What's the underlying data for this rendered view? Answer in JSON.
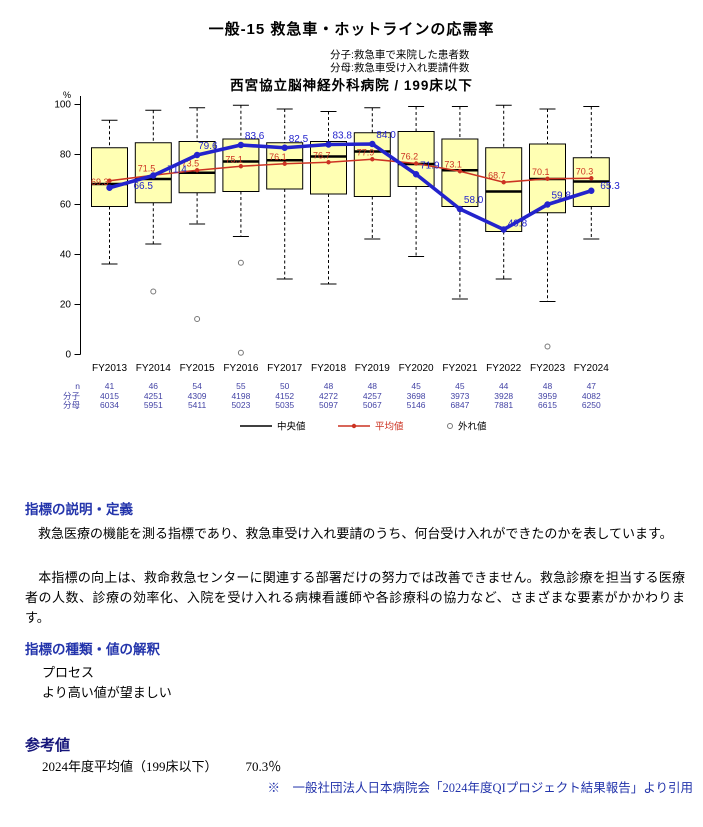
{
  "header": {
    "title": "一般-15 救急車・ホットラインの応需率",
    "numerator_note": "分子:救急車で来院した患者数",
    "denominator_note": "分母:救急車受け入れ要請件数",
    "chart_title": "西宮協立脳神経外科病院 / 199床以下"
  },
  "chart_data": {
    "type": "boxplot+line",
    "title": "西宮協立脳神経外科病院 / 199床以下",
    "unit": "%",
    "ylim": [
      0,
      100
    ],
    "yticks": [
      0,
      20,
      40,
      60,
      80,
      100
    ],
    "grid": false,
    "legend_position": "bottom",
    "categories": [
      "FY2013",
      "FY2014",
      "FY2015",
      "FY2016",
      "FY2017",
      "FY2018",
      "FY2019",
      "FY2020",
      "FY2021",
      "FY2022",
      "FY2023",
      "FY2024"
    ],
    "mean": {
      "label": "平均値",
      "values": [
        69.3,
        71.5,
        73.5,
        75.1,
        76.1,
        76.7,
        77.9,
        76.2,
        73.1,
        68.7,
        70.1,
        70.3
      ]
    },
    "hospital": {
      "label": "当院値",
      "values": [
        66.5,
        71.4,
        79.6,
        83.6,
        82.5,
        83.8,
        84.0,
        71.9,
        58.0,
        49.8,
        59.8,
        65.3
      ]
    },
    "boxes": {
      "whisker_high": [
        93.5,
        97.5,
        98.5,
        99.5,
        98,
        97,
        98.5,
        99,
        99,
        99.5,
        98,
        99
      ],
      "q3": [
        82.5,
        84.5,
        85,
        86,
        84.5,
        85,
        88.5,
        89,
        86,
        82.5,
        84,
        78.5
      ],
      "median": [
        68,
        70,
        72.5,
        77,
        77.5,
        79,
        81,
        76,
        73.5,
        65,
        70,
        69
      ],
      "q1": [
        59,
        60.5,
        64.5,
        65,
        66,
        64,
        63,
        67,
        59,
        49,
        56.5,
        59
      ],
      "whisker_low": [
        36,
        44,
        52,
        47,
        30,
        28,
        46,
        39,
        22,
        30,
        21,
        46
      ]
    },
    "outliers": [
      {
        "category": "FY2014",
        "value": 25
      },
      {
        "category": "FY2015",
        "value": 14
      },
      {
        "category": "FY2016",
        "value": 36.5
      },
      {
        "category": "FY2016",
        "value": 0.5
      },
      {
        "category": "FY2023",
        "value": 3
      }
    ],
    "table": {
      "row_labels": [
        "n",
        "分子",
        "分母"
      ],
      "n": [
        41,
        46,
        54,
        55,
        50,
        48,
        48,
        45,
        45,
        44,
        48,
        47
      ],
      "numerator": [
        4015,
        4251,
        4309,
        4198,
        4152,
        4272,
        4257,
        3698,
        3973,
        3928,
        3959,
        4082
      ],
      "denominator": [
        6034,
        5951,
        5411,
        5023,
        5035,
        5097,
        5067,
        5146,
        6847,
        7881,
        6615,
        6250
      ]
    },
    "legend": [
      "中央値",
      "平均値",
      "外れ値"
    ],
    "colors": {
      "box_fill": "#ffffb3",
      "box_border": "#000000",
      "median": "#000000",
      "mean": "#cc3322",
      "hospital": "#2323cc",
      "outlier": "#777777",
      "table": "#4343a5"
    }
  },
  "sections": {
    "definition": {
      "heading": "指標の説明・定義",
      "p1": "　救急医療の機能を測る指標であり、救急車受け入れ要請のうち、何台受け入れができたのかを表しています。",
      "p2": "　本指標の向上は、救命救急センターに関連する部署だけの努力では改善できません。救急診療を担当する医療者の人数、診療の効率化、入院を受け入れる病棟看護師や各診療科の協力など、さまざまな要素がかかわります。"
    },
    "interpretation": {
      "heading": "指標の種類・値の解釈",
      "type": "プロセス",
      "direction": "より高い値が望ましい"
    },
    "reference": {
      "heading": "参考値",
      "average_label": "2024年度平均値（199床以下）",
      "average_value": "70.3％",
      "citation": "※　一般社団法人日本病院会「2024年度QIプロジェクト結果報告」より引用"
    }
  }
}
